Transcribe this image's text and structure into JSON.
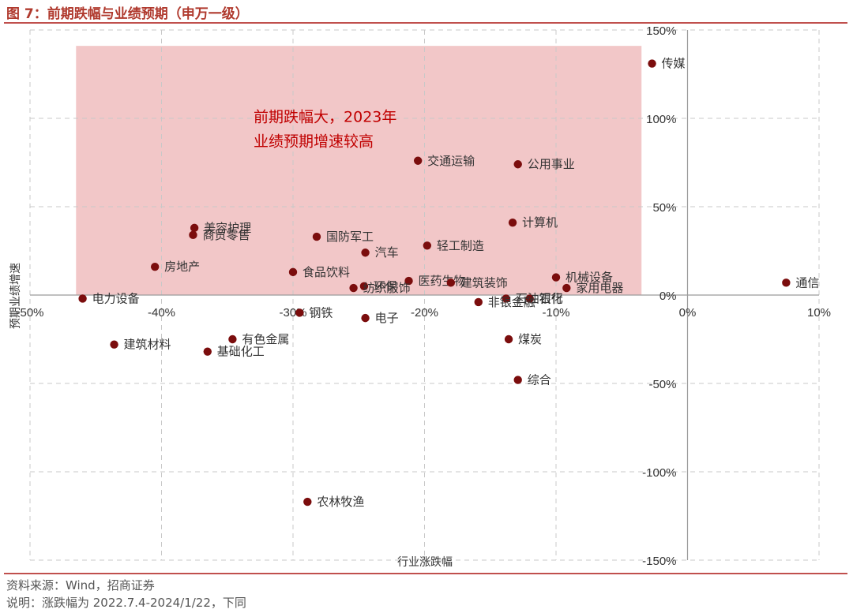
{
  "figure": {
    "title": "图 7：前期跌幅与业绩预期（申万一级）",
    "source": "资料来源：Wind，招商证券",
    "note": "说明：涨跌幅为 2022.7.4-2024/1/22，下同",
    "colors": {
      "accent": "#C0504D",
      "title": "#B03A2E",
      "point": "#7B0D0D",
      "highlight": "#F2C7C8",
      "annotation": "#C00000"
    }
  },
  "chart_data": {
    "type": "scatter",
    "title": "",
    "xlabel": "行业涨跌幅",
    "ylabel": "预期业绩增速",
    "xlim": [
      -50,
      10
    ],
    "ylim": [
      -150,
      150
    ],
    "x_ticks": [
      -50,
      -40,
      -30,
      -20,
      -10,
      0,
      10
    ],
    "x_tick_labels": [
      "-50%",
      "-40%",
      "-30%",
      "-20%",
      "-10%",
      "0%",
      "10%"
    ],
    "y_ticks": [
      150,
      100,
      50,
      0,
      -50,
      -100,
      -150
    ],
    "y_tick_labels": [
      "150%",
      "100%",
      "50%",
      "0%",
      "-50%",
      "-100%",
      "-150%"
    ],
    "grid": true,
    "highlight_region": {
      "x": [
        -46.5,
        -3.5
      ],
      "y": [
        0,
        141
      ]
    },
    "annotation": {
      "lines": [
        "前期跌幅大，2023年",
        "业绩预期增速较高"
      ],
      "at": [
        -33,
        98
      ]
    },
    "points": [
      {
        "name": "传媒",
        "x": -2.7,
        "y": 131
      },
      {
        "name": "交通运输",
        "x": -20.5,
        "y": 76
      },
      {
        "name": "公用事业",
        "x": -12.9,
        "y": 74
      },
      {
        "name": "计算机",
        "x": -13.3,
        "y": 41
      },
      {
        "name": "美容护理",
        "x": -37.5,
        "y": 38
      },
      {
        "name": "商贸零售",
        "x": -37.6,
        "y": 34
      },
      {
        "name": "国防军工",
        "x": -28.2,
        "y": 33
      },
      {
        "name": "轻工制造",
        "x": -19.8,
        "y": 28
      },
      {
        "name": "汽车",
        "x": -24.5,
        "y": 24
      },
      {
        "name": "房地产",
        "x": -40.5,
        "y": 16
      },
      {
        "name": "食品饮料",
        "x": -30,
        "y": 13
      },
      {
        "name": "机械设备",
        "x": -10,
        "y": 10
      },
      {
        "name": "医药生物",
        "x": -21.2,
        "y": 8
      },
      {
        "name": "建筑装饰",
        "x": -18,
        "y": 7
      },
      {
        "name": "通信",
        "x": 7.5,
        "y": 7
      },
      {
        "name": "环保",
        "x": -24.6,
        "y": 5
      },
      {
        "name": "家用电器",
        "x": -9.2,
        "y": 4
      },
      {
        "name": "纺织服饰",
        "x": -25.4,
        "y": 4
      },
      {
        "name": "电力设备",
        "x": -46,
        "y": -2
      },
      {
        "name": "银行",
        "x": -12,
        "y": -2
      },
      {
        "name": "石油石化",
        "x": -13.8,
        "y": -2
      },
      {
        "name": "非银金融",
        "x": -15.9,
        "y": -4
      },
      {
        "name": "钢铁",
        "x": -29.5,
        "y": -10
      },
      {
        "name": "电子",
        "x": -24.5,
        "y": -13
      },
      {
        "name": "有色金属",
        "x": -34.6,
        "y": -25
      },
      {
        "name": "煤炭",
        "x": -13.6,
        "y": -25
      },
      {
        "name": "建筑材料",
        "x": -43.6,
        "y": -28
      },
      {
        "name": "基础化工",
        "x": -36.5,
        "y": -32
      },
      {
        "name": "综合",
        "x": -12.9,
        "y": -48
      },
      {
        "name": "农林牧渔",
        "x": -28.9,
        "y": -117
      }
    ]
  }
}
